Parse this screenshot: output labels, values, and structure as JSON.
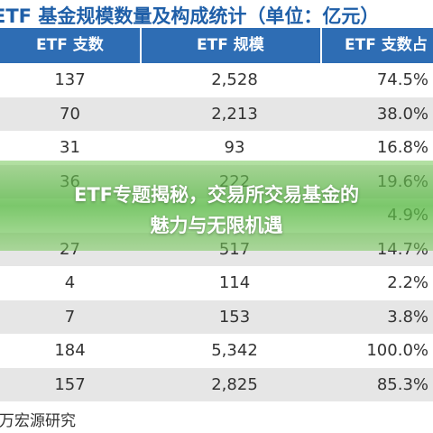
{
  "table": {
    "title": "ETF 基金规模数量及构成统计（单位：亿元）",
    "header": [
      "ETF 支数",
      "ETF 规模",
      "ETF 支数占"
    ],
    "rows": [
      [
        "137",
        "2,528",
        "74.5%"
      ],
      [
        "70",
        "2,213",
        "38.0%"
      ],
      [
        "31",
        "93",
        "16.8%"
      ],
      [
        "36",
        "222",
        "19.6%"
      ],
      [
        null,
        null,
        "4.9%"
      ],
      [
        "27",
        "517",
        "14.7%"
      ],
      [
        "4",
        "114",
        "2.2%"
      ],
      [
        "7",
        "153",
        "3.8%"
      ],
      [
        "184",
        "5,342",
        "100.0%"
      ],
      [
        "157",
        "2,825",
        "85.3%"
      ]
    ],
    "source": "申万宏源研究"
  },
  "banner": {
    "lines": [
      "ETF专题揭秘，交易所交易基金的",
      "魅力与无限机遇"
    ]
  }
}
